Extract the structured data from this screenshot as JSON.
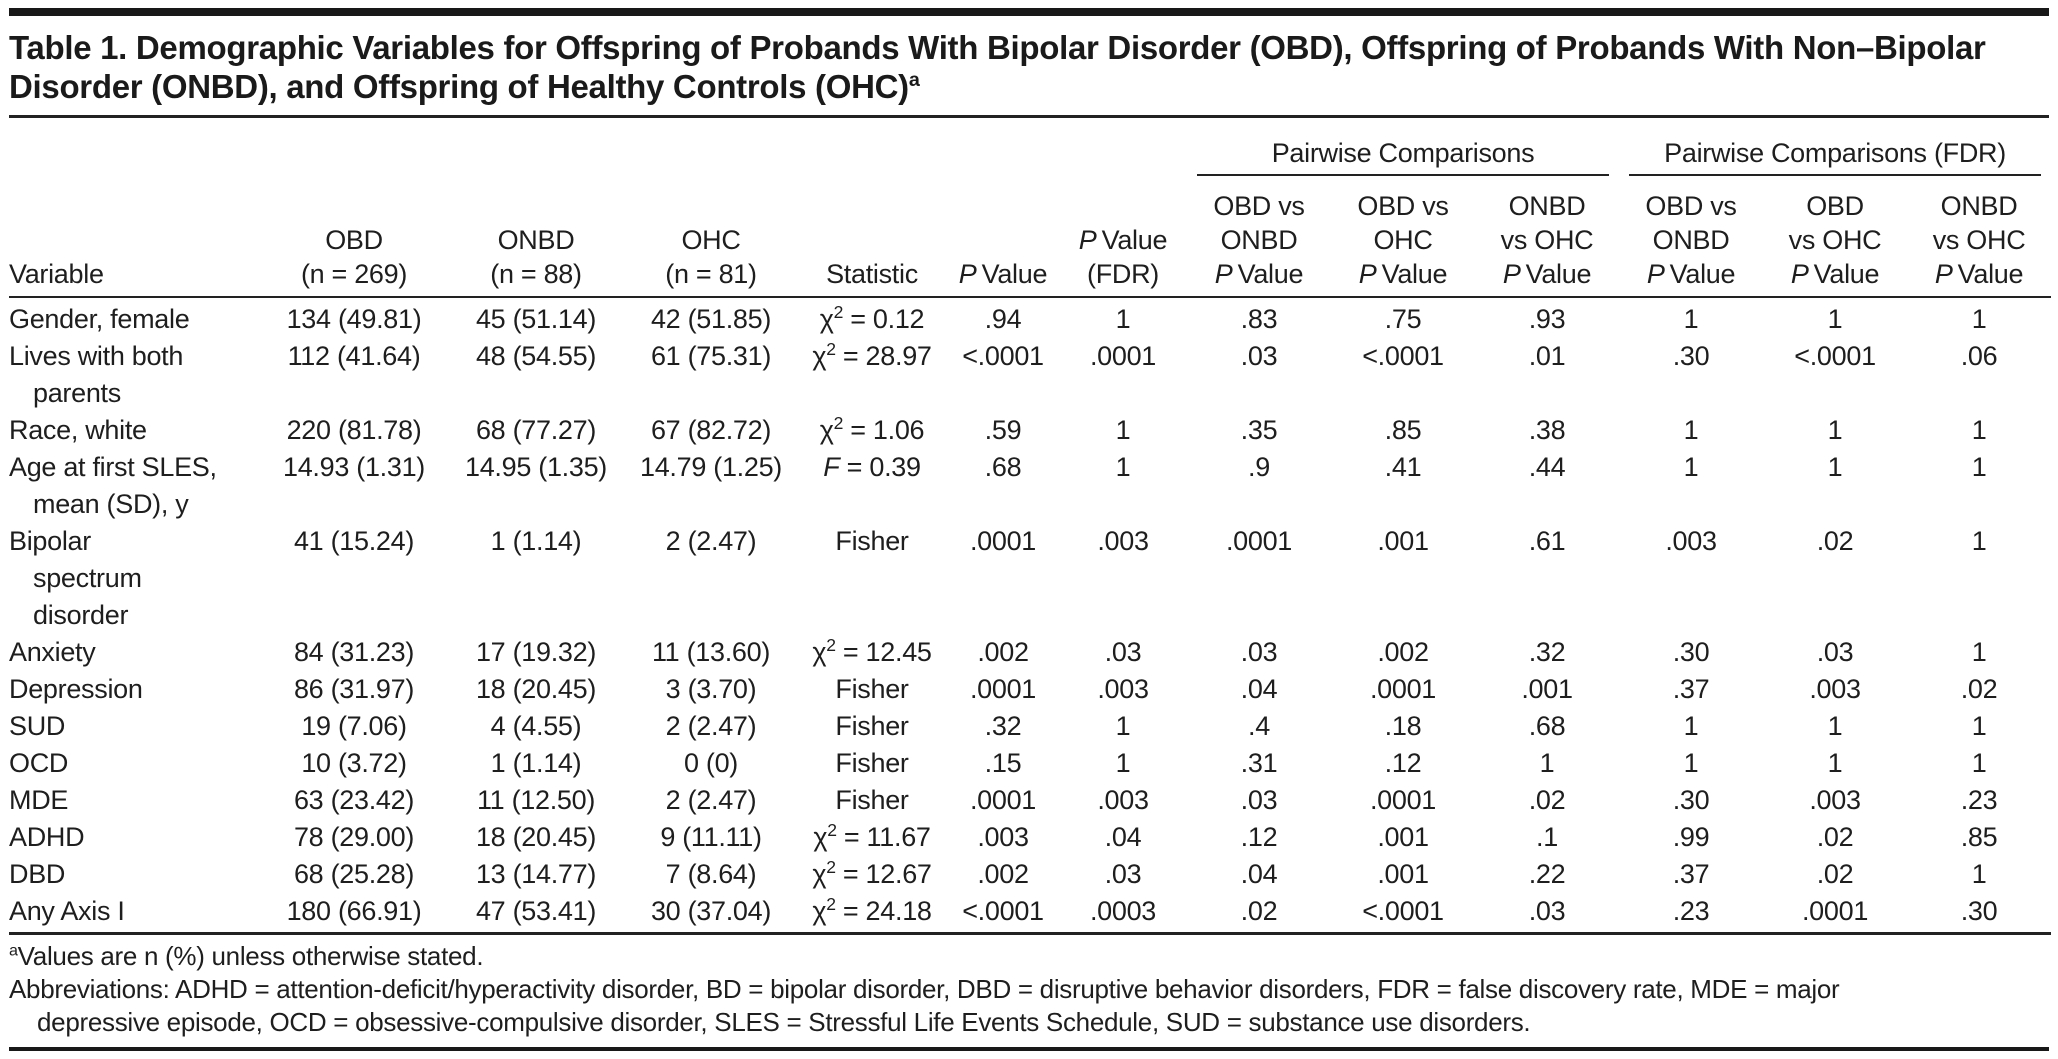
{
  "table": {
    "title": "Table 1. Demographic Variables for Offspring of Probands With Bipolar Disorder (OBD), Offspring of Probands With Non–Bipolar Disorder (ONBD), and Offspring of Healthy Controls (OHC)",
    "title_superscript": "a",
    "column_groups": [
      {
        "label": "Pairwise Comparisons",
        "span": 3
      },
      {
        "label": "Pairwise Comparisons (FDR)",
        "span": 3
      }
    ],
    "columns": [
      {
        "lines": [
          "Variable"
        ],
        "align": "left"
      },
      {
        "lines": [
          "OBD",
          "(n = 269)"
        ]
      },
      {
        "lines": [
          "ONBD",
          "(n = 88)"
        ]
      },
      {
        "lines": [
          "OHC",
          "(n = 81)"
        ]
      },
      {
        "lines": [
          "Statistic"
        ]
      },
      {
        "lines": [
          "P Value"
        ]
      },
      {
        "lines": [
          "P Value",
          "(FDR)"
        ]
      },
      {
        "lines": [
          "OBD vs",
          "ONBD",
          "P Value"
        ]
      },
      {
        "lines": [
          "OBD vs",
          "OHC",
          "P Value"
        ]
      },
      {
        "lines": [
          "ONBD",
          "vs OHC",
          "P Value"
        ]
      },
      {
        "lines": [
          "OBD vs",
          "ONBD",
          "P Value"
        ]
      },
      {
        "lines": [
          "OBD",
          "vs OHC",
          "P Value"
        ]
      },
      {
        "lines": [
          "ONBD",
          "vs OHC",
          "P Value"
        ]
      }
    ],
    "rows": [
      {
        "variable": [
          "Gender, female"
        ],
        "cells": [
          "134 (49.81)",
          "45 (51.14)",
          "42 (51.85)",
          "χ2 = 0.12",
          ".94",
          "1",
          ".83",
          ".75",
          ".93",
          "1",
          "1",
          "1"
        ]
      },
      {
        "variable": [
          "Lives with both",
          "parents"
        ],
        "cells": [
          "112 (41.64)",
          "48 (54.55)",
          "61 (75.31)",
          "χ2 = 28.97",
          "<.0001",
          ".0001",
          ".03",
          "<.0001",
          ".01",
          ".30",
          "<.0001",
          ".06"
        ]
      },
      {
        "variable": [
          "Race, white"
        ],
        "cells": [
          "220 (81.78)",
          "68 (77.27)",
          "67 (82.72)",
          "χ2 = 1.06",
          ".59",
          "1",
          ".35",
          ".85",
          ".38",
          "1",
          "1",
          "1"
        ]
      },
      {
        "variable": [
          "Age at first SLES,",
          "mean (SD), y"
        ],
        "cells": [
          "14.93 (1.31)",
          "14.95 (1.35)",
          "14.79 (1.25)",
          "F = 0.39",
          ".68",
          "1",
          ".9",
          ".41",
          ".44",
          "1",
          "1",
          "1"
        ]
      },
      {
        "variable": [
          "Bipolar",
          "spectrum",
          "disorder"
        ],
        "cells": [
          "41 (15.24)",
          "1 (1.14)",
          "2 (2.47)",
          "Fisher",
          ".0001",
          ".003",
          ".0001",
          ".001",
          ".61",
          ".003",
          ".02",
          "1"
        ]
      },
      {
        "variable": [
          "Anxiety"
        ],
        "cells": [
          "84 (31.23)",
          "17 (19.32)",
          "11 (13.60)",
          "χ2 = 12.45",
          ".002",
          ".03",
          ".03",
          ".002",
          ".32",
          ".30",
          ".03",
          "1"
        ]
      },
      {
        "variable": [
          "Depression"
        ],
        "cells": [
          "86 (31.97)",
          "18 (20.45)",
          "3 (3.70)",
          "Fisher",
          ".0001",
          ".003",
          ".04",
          ".0001",
          ".001",
          ".37",
          ".003",
          ".02"
        ]
      },
      {
        "variable": [
          "SUD"
        ],
        "cells": [
          "19 (7.06)",
          "4 (4.55)",
          "2 (2.47)",
          "Fisher",
          ".32",
          "1",
          ".4",
          ".18",
          ".68",
          "1",
          "1",
          "1"
        ]
      },
      {
        "variable": [
          "OCD"
        ],
        "cells": [
          "10 (3.72)",
          "1 (1.14)",
          "0 (0)",
          "Fisher",
          ".15",
          "1",
          ".31",
          ".12",
          "1",
          "1",
          "1",
          "1"
        ]
      },
      {
        "variable": [
          "MDE"
        ],
        "cells": [
          "63 (23.42)",
          "11 (12.50)",
          "2 (2.47)",
          "Fisher",
          ".0001",
          ".003",
          ".03",
          ".0001",
          ".02",
          ".30",
          ".003",
          ".23"
        ]
      },
      {
        "variable": [
          "ADHD"
        ],
        "cells": [
          "78 (29.00)",
          "18 (20.45)",
          "9 (11.11)",
          "χ2 = 11.67",
          ".003",
          ".04",
          ".12",
          ".001",
          ".1",
          ".99",
          ".02",
          ".85"
        ]
      },
      {
        "variable": [
          "DBD"
        ],
        "cells": [
          "68 (25.28)",
          "13 (14.77)",
          "7 (8.64)",
          "χ2 = 12.67",
          ".002",
          ".03",
          ".04",
          ".001",
          ".22",
          ".37",
          ".02",
          "1"
        ]
      },
      {
        "variable": [
          "Any Axis I"
        ],
        "cells": [
          "180 (66.91)",
          "47 (53.41)",
          "30 (37.04)",
          "χ2 = 24.18",
          "<.0001",
          ".0003",
          ".02",
          "<.0001",
          ".03",
          ".23",
          ".0001",
          ".30"
        ]
      }
    ],
    "footnotes": [
      {
        "marker": "a",
        "text": "Values are n (%) unless otherwise stated."
      },
      {
        "marker": "",
        "text": "Abbreviations: ADHD = attention-deficit/hyperactivity disorder, BD = bipolar disorder, DBD = disruptive behavior disorders, FDR = false discovery rate, MDE = major depressive episode, OCD = obsessive-compulsive disorder, SLES = Stressful Life Events Schedule, SUD = substance use disorders."
      }
    ]
  }
}
